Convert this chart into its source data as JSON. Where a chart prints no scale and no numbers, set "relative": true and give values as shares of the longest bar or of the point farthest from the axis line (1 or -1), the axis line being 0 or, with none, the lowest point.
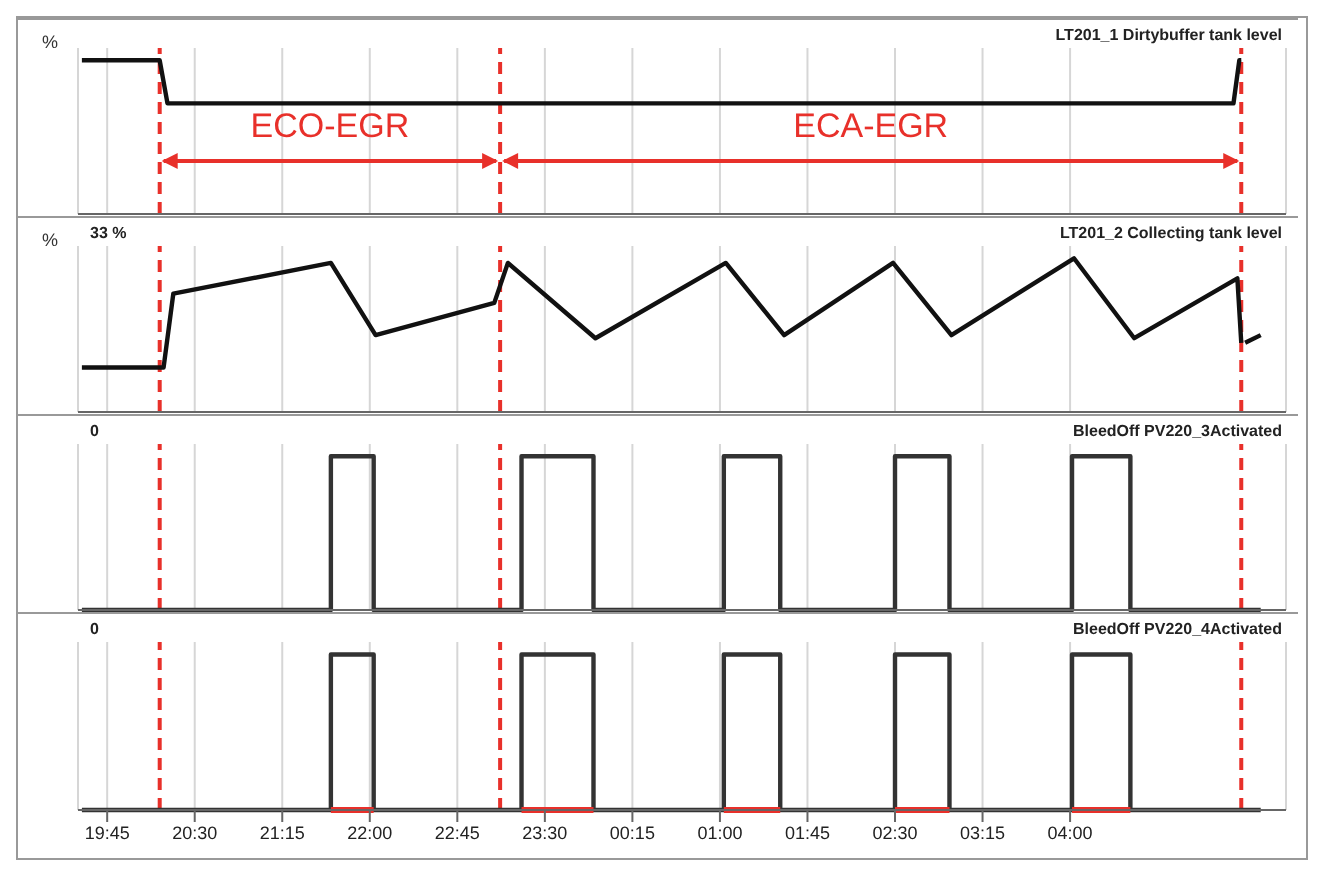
{
  "chart_data": [
    {
      "type": "line",
      "title": "LT201_1 Dirtybuffer tank level",
      "ylabel": "%",
      "annotations": [
        "ECO-EGR",
        "ECA-EGR"
      ],
      "relative": true,
      "xlim": [
        "2000-01-01T19:30",
        "2000-01-02T05:51"
      ],
      "xticks": [
        {
          "value": "2000-01-01T19:45",
          "label": null
        },
        {
          "value": "2000-01-01T20:30",
          "label": null
        },
        {
          "value": "2000-01-01T21:15",
          "label": null
        },
        {
          "value": "2000-01-01T22:00",
          "label": null
        },
        {
          "value": "2000-01-01T22:45",
          "label": null
        },
        {
          "value": "2000-01-01T23:30",
          "label": null
        },
        {
          "value": "2000-01-02T00:15",
          "label": null
        },
        {
          "value": "2000-01-02T01:00",
          "label": null
        },
        {
          "value": "2000-01-02T01:45",
          "label": null
        },
        {
          "value": "2000-01-02T02:30",
          "label": null
        },
        {
          "value": "2000-01-02T03:15",
          "label": null
        },
        {
          "value": "2000-01-02T04:00",
          "label": null
        }
      ],
      "tick_labels": false,
      "grid": "x",
      "x": [
        "2000-01-01T19:32",
        "2000-01-01T20:12",
        "2000-01-01T20:16",
        "2000-01-02T05:24",
        "2000-01-02T05:27",
        "2000-01-02T05:28"
      ],
      "series": [
        {
          "color": "#111111",
          "values": [
            1,
            1,
            0.72,
            0.72,
            1,
            1
          ]
        }
      ],
      "ref_lines": [
        {
          "axis": "x",
          "value": "2000-01-01T20:12",
          "color": "#e8302a",
          "line_style": "dashed"
        },
        {
          "axis": "x",
          "value": "2000-01-01T23:07",
          "color": "#e8302a",
          "line_style": "dashed"
        },
        {
          "axis": "x",
          "value": "2000-01-02T05:28",
          "color": "#e8302a",
          "line_style": "dashed"
        }
      ]
    },
    {
      "type": "line",
      "title": "LT201_2 Collecting tank level",
      "ylabel": "%",
      "annotations": [
        "33 %"
      ],
      "relative": true,
      "xlim": [
        "2000-01-01T19:30",
        "2000-01-02T05:51"
      ],
      "xticks": [
        {
          "value": "2000-01-01T19:45",
          "label": null
        },
        {
          "value": "2000-01-01T20:30",
          "label": null
        },
        {
          "value": "2000-01-01T21:15",
          "label": null
        },
        {
          "value": "2000-01-01T22:00",
          "label": null
        },
        {
          "value": "2000-01-01T22:45",
          "label": null
        },
        {
          "value": "2000-01-01T23:30",
          "label": null
        },
        {
          "value": "2000-01-02T00:15",
          "label": null
        },
        {
          "value": "2000-01-02T01:00",
          "label": null
        },
        {
          "value": "2000-01-02T01:45",
          "label": null
        },
        {
          "value": "2000-01-02T02:30",
          "label": null
        },
        {
          "value": "2000-01-02T03:15",
          "label": null
        },
        {
          "value": "2000-01-02T04:00",
          "label": null
        }
      ],
      "tick_labels": false,
      "grid": "x",
      "x": [
        "2000-01-01T19:32",
        "2000-01-01T20:14",
        "2000-01-01T20:19",
        "2000-01-01T21:40",
        "2000-01-01T22:03",
        "2000-01-01T23:04",
        "2000-01-01T23:11",
        "2000-01-01T23:56",
        "2000-01-02T01:03",
        "2000-01-02T01:33",
        "2000-01-02T02:29",
        "2000-01-02T02:59",
        "2000-01-02T04:02",
        "2000-01-02T04:33",
        "2000-01-02T05:26",
        "2000-01-02T05:28",
        "2000-01-02T05:29",
        "2000-01-02T05:30",
        "2000-01-02T05:38"
      ],
      "series": [
        {
          "color": "#111111",
          "values": [
            0.29,
            0.29,
            0.77,
            0.97,
            0.5,
            0.71,
            0.97,
            0.48,
            0.97,
            0.5,
            0.97,
            0.5,
            1,
            0.48,
            0.87,
            0.45,
            null,
            0.45,
            0.5
          ]
        }
      ],
      "ref_lines": [
        {
          "axis": "x",
          "value": "2000-01-01T20:12",
          "color": "#e8302a",
          "line_style": "dashed"
        },
        {
          "axis": "x",
          "value": "2000-01-01T23:07",
          "color": "#e8302a",
          "line_style": "dashed"
        },
        {
          "axis": "x",
          "value": "2000-01-02T05:28",
          "color": "#e8302a",
          "line_style": "dashed"
        }
      ]
    },
    {
      "type": "step",
      "title": "BleedOff PV220_3Activated",
      "annotations": [
        "0"
      ],
      "relative": true,
      "xlim": [
        "2000-01-01T19:30",
        "2000-01-02T05:51"
      ],
      "xticks": [
        {
          "value": "2000-01-01T19:45",
          "label": null
        },
        {
          "value": "2000-01-01T20:30",
          "label": null
        },
        {
          "value": "2000-01-01T21:15",
          "label": null
        },
        {
          "value": "2000-01-01T22:00",
          "label": null
        },
        {
          "value": "2000-01-01T22:45",
          "label": null
        },
        {
          "value": "2000-01-01T23:30",
          "label": null
        },
        {
          "value": "2000-01-02T00:15",
          "label": null
        },
        {
          "value": "2000-01-02T01:00",
          "label": null
        },
        {
          "value": "2000-01-02T01:45",
          "label": null
        },
        {
          "value": "2000-01-02T02:30",
          "label": null
        },
        {
          "value": "2000-01-02T03:15",
          "label": null
        },
        {
          "value": "2000-01-02T04:00",
          "label": null
        }
      ],
      "tick_labels": false,
      "grid": "x",
      "x": [
        "2000-01-01T19:32",
        "2000-01-01T21:40",
        "2000-01-01T22:02",
        "2000-01-01T23:18",
        "2000-01-01T23:55",
        "2000-01-02T01:02",
        "2000-01-02T01:31",
        "2000-01-02T02:30",
        "2000-01-02T02:58",
        "2000-01-02T04:01",
        "2000-01-02T04:31",
        "2000-01-02T05:38"
      ],
      "series": [
        {
          "color": "#333333",
          "values": [
            0,
            1,
            0,
            1,
            0,
            1,
            0,
            1,
            0,
            1,
            0,
            0
          ]
        }
      ],
      "ref_lines": [
        {
          "axis": "x",
          "value": "2000-01-01T20:12",
          "color": "#e8302a",
          "line_style": "dashed"
        },
        {
          "axis": "x",
          "value": "2000-01-01T23:07",
          "color": "#e8302a",
          "line_style": "dashed"
        },
        {
          "axis": "x",
          "value": "2000-01-02T05:28",
          "color": "#e8302a",
          "line_style": "dashed"
        }
      ]
    },
    {
      "type": "step",
      "title": "BleedOff PV220_4Activated",
      "annotations": [
        "0"
      ],
      "relative": true,
      "xlim": [
        "2000-01-01T19:30",
        "2000-01-02T05:51"
      ],
      "xticks": [
        {
          "value": "2000-01-01T19:45",
          "label": "19:45"
        },
        {
          "value": "2000-01-01T20:30",
          "label": "20:30"
        },
        {
          "value": "2000-01-01T21:15",
          "label": "21:15"
        },
        {
          "value": "2000-01-01T22:00",
          "label": "22:00"
        },
        {
          "value": "2000-01-01T22:45",
          "label": "22:45"
        },
        {
          "value": "2000-01-01T23:30",
          "label": "23:30"
        },
        {
          "value": "2000-01-02T00:15",
          "label": "00:15"
        },
        {
          "value": "2000-01-02T01:00",
          "label": "01:00"
        },
        {
          "value": "2000-01-02T01:45",
          "label": "01:45"
        },
        {
          "value": "2000-01-02T02:30",
          "label": "02:30"
        },
        {
          "value": "2000-01-02T03:15",
          "label": "03:15"
        },
        {
          "value": "2000-01-02T04:00",
          "label": "04:00"
        }
      ],
      "tick_labels": "x",
      "grid": "x",
      "x": [
        "2000-01-01T19:32",
        "2000-01-01T21:40",
        "2000-01-01T22:02",
        "2000-01-01T22:36",
        "2000-01-01T23:18",
        "2000-01-01T23:55",
        "2000-01-02T00:30",
        "2000-01-02T01:02",
        "2000-01-02T01:31",
        "2000-01-02T02:00",
        "2000-01-02T02:30",
        "2000-01-02T02:58",
        "2000-01-02T03:30",
        "2000-01-02T04:01",
        "2000-01-02T04:31",
        "2000-01-02T05:00",
        "2000-01-02T05:38"
      ],
      "series": [
        {
          "color": "#333333",
          "values": [
            0,
            1,
            0,
            0,
            1,
            0,
            0,
            1,
            0,
            0,
            1,
            0,
            0,
            1,
            0,
            0,
            0
          ]
        },
        {
          "color": "#e8302a",
          "values": [
            null,
            0,
            0,
            null,
            0,
            0,
            null,
            0,
            0,
            null,
            0,
            0,
            null,
            0,
            0,
            null,
            null
          ]
        }
      ],
      "ref_lines": [
        {
          "axis": "x",
          "value": "2000-01-01T20:12",
          "color": "#e8302a",
          "line_style": "dashed"
        },
        {
          "axis": "x",
          "value": "2000-01-01T23:07",
          "color": "#e8302a",
          "line_style": "dashed"
        },
        {
          "axis": "x",
          "value": "2000-01-02T05:28",
          "color": "#e8302a",
          "line_style": "dashed"
        }
      ]
    }
  ]
}
